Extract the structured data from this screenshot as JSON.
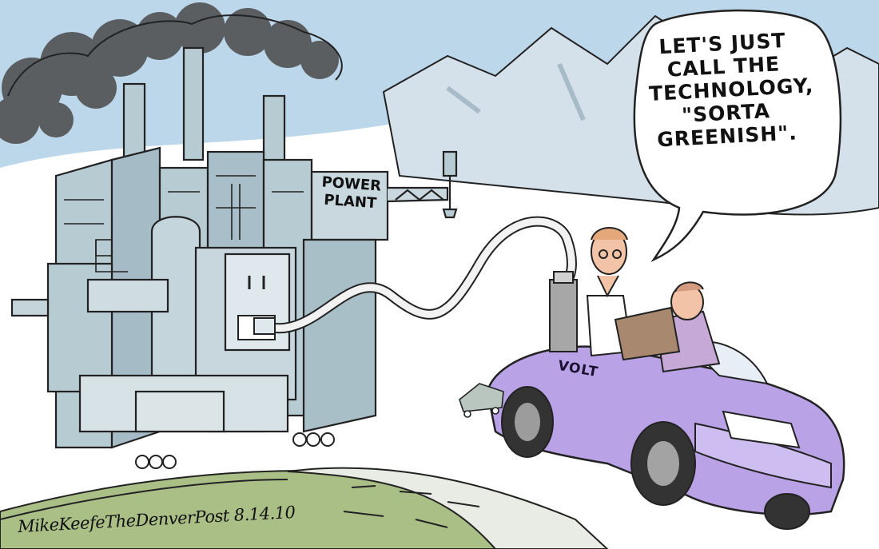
{
  "speech_bubble": {
    "lines": [
      "LET'S JUST",
      "CALL THE",
      "TECHNOLOGY,",
      "\"SORTA",
      "GREENISH\"."
    ]
  },
  "power_plant_sign": {
    "lines": [
      "POWER",
      "PLANT"
    ]
  },
  "car": {
    "label": "VOLT",
    "color": "#b9a2e6"
  },
  "signature": {
    "text": "MikeKeefeTheDenverPost 8.14.10"
  },
  "colors": {
    "sky": "#bcd6ea",
    "mountains": "#c9d9e3",
    "hill": "#a9bf86",
    "plant": "#b7cbd3",
    "smoke": "#3a3a3a"
  }
}
